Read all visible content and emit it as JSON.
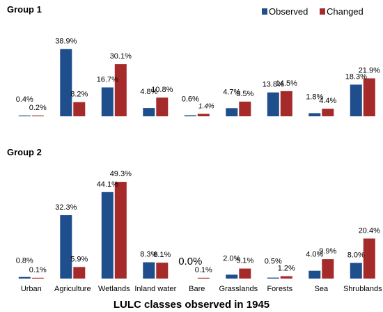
{
  "chart_data": {
    "type": "bar",
    "legend": {
      "position": "top-right",
      "entries": [
        "Observed",
        "Changed"
      ]
    },
    "colors": {
      "Observed": "#1f4e8c",
      "Changed": "#a52a2a"
    },
    "categories": [
      "Urban",
      "Agriculture",
      "Wetlands",
      "Inland water",
      "Bare",
      "Grasslands",
      "Forests",
      "Sea",
      "Shrublands"
    ],
    "xlabel": "LULC classes observed in 1945",
    "grid": false,
    "panels": [
      {
        "title": "Group 1",
        "series": [
          {
            "name": "Observed",
            "values": [
              0.4,
              38.9,
              16.7,
              4.8,
              0.6,
              4.7,
              13.8,
              1.8,
              18.3
            ],
            "labels": [
              "0.4%",
              "38.9%",
              "16.7%",
              "4.8%",
              "0.6%",
              "4.7%",
              "13.8%",
              "1.8%",
              "18.3%"
            ]
          },
          {
            "name": "Changed",
            "values": [
              0.2,
              8.2,
              30.1,
              10.8,
              1.4,
              8.5,
              14.5,
              4.4,
              21.9
            ],
            "labels": [
              "0.2%",
              "8.2%",
              "30.1%",
              "10.8%",
              "1.4%",
              "8.5%",
              "14.5%",
              "4.4%",
              "21.9%"
            ]
          }
        ]
      },
      {
        "title": "Group 2",
        "series": [
          {
            "name": "Observed",
            "values": [
              0.8,
              32.3,
              44.1,
              8.3,
              0.0,
              2.0,
              0.5,
              4.0,
              8.0
            ],
            "labels": [
              "0.8%",
              "32.3%",
              "44.1%",
              "8.3%",
              "0.0%",
              "2.0%",
              "0.5%",
              "4.0%",
              "8.0%"
            ]
          },
          {
            "name": "Changed",
            "values": [
              0.1,
              5.9,
              49.3,
              8.1,
              0.1,
              5.1,
              1.2,
              9.9,
              20.4
            ],
            "labels": [
              "0.1%",
              "5.9%",
              "49.3%",
              "8.1%",
              "0.1%",
              "5.1%",
              "1.2%",
              "9.9%",
              "20.4%"
            ]
          }
        ]
      }
    ]
  }
}
